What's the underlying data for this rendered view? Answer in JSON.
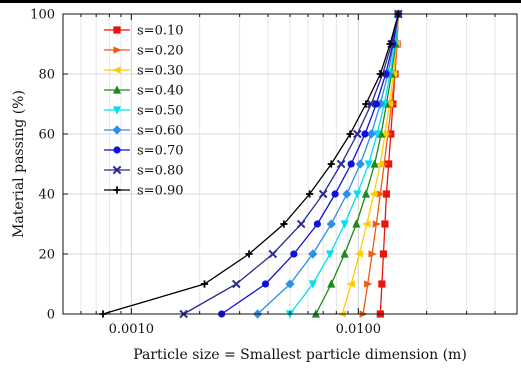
{
  "chart_data": {
    "type": "line",
    "title": "",
    "xlabel": "Particle size = Smallest particle dimension (m)",
    "ylabel": "Material passing (%)",
    "xscale": "log",
    "xlim": [
      0.0005,
      0.05
    ],
    "ylim": [
      0,
      100
    ],
    "x_ticks": [
      "0.0010",
      "0.0100"
    ],
    "y_ticks": [
      "0",
      "20",
      "40",
      "60",
      "80",
      "100"
    ],
    "legend_position": "top-left",
    "grid": true,
    "y": [
      0,
      10,
      20,
      30,
      40,
      50,
      60,
      70,
      80,
      90,
      100
    ],
    "series": [
      {
        "name": "s=0.10",
        "color": "#e8140f",
        "marker": "square",
        "x": [
          0.0125,
          0.0127,
          0.0129,
          0.0131,
          0.0133,
          0.0136,
          0.0139,
          0.0142,
          0.0145,
          0.0148,
          0.015
        ]
      },
      {
        "name": "s=0.20",
        "color": "#f05a14",
        "marker": "triangle-right",
        "x": [
          0.0105,
          0.011,
          0.0115,
          0.012,
          0.0125,
          0.013,
          0.0135,
          0.014,
          0.0145,
          0.0148,
          0.015
        ]
      },
      {
        "name": "s=0.30",
        "color": "#ffcc00",
        "marker": "triangle-left",
        "x": [
          0.0085,
          0.0093,
          0.0101,
          0.0109,
          0.0117,
          0.0125,
          0.0131,
          0.0137,
          0.0143,
          0.0147,
          0.015
        ]
      },
      {
        "name": "s=0.40",
        "color": "#1a8a1a",
        "marker": "triangle-up",
        "x": [
          0.0065,
          0.0076,
          0.0087,
          0.0098,
          0.0108,
          0.0118,
          0.0126,
          0.0133,
          0.014,
          0.0146,
          0.015
        ]
      },
      {
        "name": "s=0.50",
        "color": "#00e0ee",
        "marker": "triangle-down",
        "x": [
          0.005,
          0.0063,
          0.0075,
          0.0087,
          0.0099,
          0.0111,
          0.0121,
          0.013,
          0.0138,
          0.0145,
          0.015
        ]
      },
      {
        "name": "s=0.60",
        "color": "#2f8ee8",
        "marker": "diamond",
        "x": [
          0.0036,
          0.005,
          0.0063,
          0.0076,
          0.0089,
          0.0102,
          0.0114,
          0.0125,
          0.0135,
          0.0143,
          0.015
        ]
      },
      {
        "name": "s=0.70",
        "color": "#1010dd",
        "marker": "circle",
        "x": [
          0.0025,
          0.0039,
          0.0052,
          0.0066,
          0.0079,
          0.0093,
          0.0107,
          0.012,
          0.0132,
          0.0142,
          0.015
        ]
      },
      {
        "name": "s=0.80",
        "color": "#2a2a90",
        "marker": "x",
        "x": [
          0.0017,
          0.0029,
          0.0042,
          0.0056,
          0.007,
          0.0084,
          0.0099,
          0.0114,
          0.0128,
          0.014,
          0.015
        ]
      },
      {
        "name": "s=0.90",
        "color": "#000000",
        "marker": "plus",
        "x": [
          0.00075,
          0.0021,
          0.0033,
          0.0047,
          0.0061,
          0.0076,
          0.0092,
          0.0108,
          0.0125,
          0.0138,
          0.015
        ]
      }
    ]
  }
}
